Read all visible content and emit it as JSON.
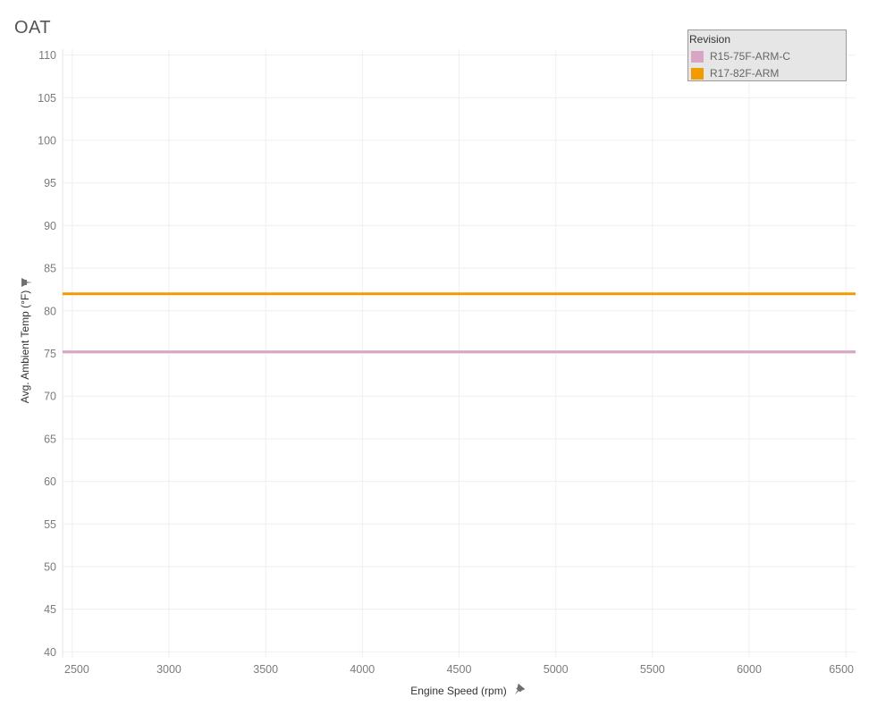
{
  "title": "OAT",
  "legend": {
    "title": "Revision",
    "items": [
      {
        "label": "R15-75F-ARM-C",
        "color": "#d9a5c4"
      },
      {
        "label": "R17-82F-ARM",
        "color": "#f29b00"
      }
    ]
  },
  "chart_data": {
    "type": "line",
    "title": "OAT",
    "xlabel": "Engine Speed (rpm)",
    "ylabel": "Avg. Ambient Temp (°F)",
    "xlim": [
      2450,
      6550
    ],
    "ylim": [
      39.3,
      110.7
    ],
    "x_ticks": [
      2500,
      3000,
      3500,
      4000,
      4500,
      5000,
      5500,
      6000,
      6500
    ],
    "y_ticks": [
      40,
      45,
      50,
      55,
      60,
      65,
      70,
      75,
      80,
      85,
      90,
      95,
      100,
      105,
      110
    ],
    "grid": true,
    "legend_position": "top-right",
    "series": [
      {
        "name": "R15-75F-ARM-C",
        "color": "#d9a5c4",
        "x": [
          2450,
          6550
        ],
        "y": [
          75.2,
          75.2
        ]
      },
      {
        "name": "R17-82F-ARM",
        "color": "#f29b00",
        "x": [
          2450,
          6550
        ],
        "y": [
          82,
          82
        ]
      }
    ]
  }
}
